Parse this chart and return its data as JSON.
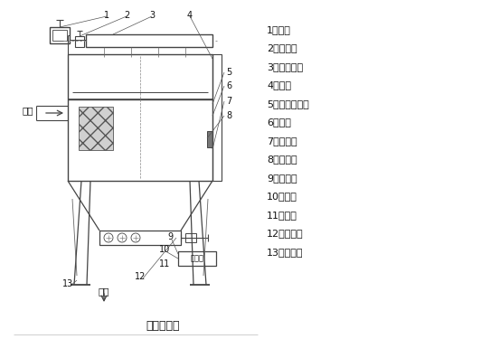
{
  "title": "原理示意图",
  "background_color": "#ffffff",
  "legend_items": [
    "1、风机",
    "2、控制阀",
    "3、低压气包",
    "4、上筱",
    "5、滤袋及笼骨",
    "6、花板",
    "7、净气筱",
    "8、检修门",
    "9、控制仪",
    "10、灰斗",
    "11、支腿",
    "12、卸料器",
    "13、检查孔"
  ],
  "inlet_label": "进风",
  "outlet_label": "卸灰",
  "control_label": "控制仪",
  "line_color": "#444444",
  "text_color": "#111111"
}
